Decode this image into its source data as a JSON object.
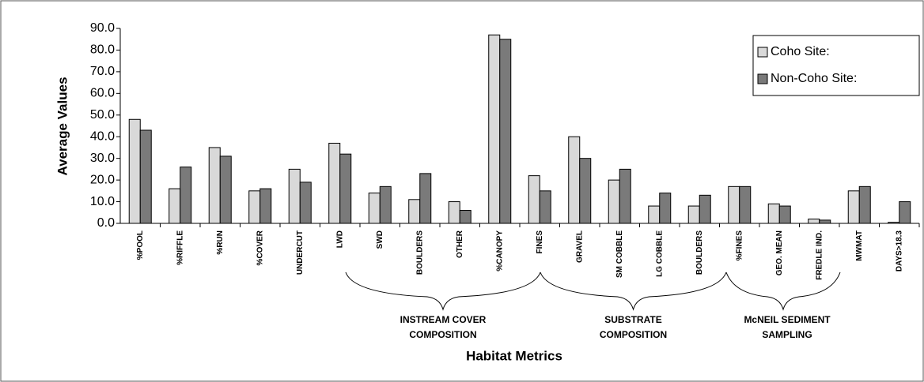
{
  "chart_data": {
    "type": "bar",
    "ylabel": "Average Values",
    "xlabel": "Habitat Metrics",
    "categories": [
      "%POOL",
      "%RIFFLE",
      "%RUN",
      "%COVER",
      "UNDERCUT",
      "LWD",
      "SWD",
      "BOULDERS",
      "OTHER",
      "%CANOPY",
      "FINES",
      "GRAVEL",
      "SM COBBLE",
      "LG COBBLE",
      "BOULDERS",
      "%FINES",
      "GEO. MEAN",
      "FREDLE IND.",
      "MWMAT",
      "DAYS>18.3"
    ],
    "series": [
      {
        "name": "Coho Site:",
        "color": "#d9d9d9",
        "values": [
          48,
          16,
          35,
          15,
          25,
          37,
          14,
          11,
          10,
          87,
          22,
          40,
          20,
          8,
          8,
          17,
          9,
          2,
          15,
          0.5
        ]
      },
      {
        "name": "Non-Coho Site:",
        "color": "#7a7a7a",
        "values": [
          43,
          26,
          31,
          16,
          19,
          32,
          17,
          23,
          6,
          85,
          15,
          30,
          25,
          14,
          13,
          17,
          8,
          1.5,
          17,
          10
        ]
      }
    ],
    "ylim": [
      0,
      90
    ],
    "yticks": [
      {
        "value": 0,
        "label": "0.0"
      },
      {
        "value": 10,
        "label": "10.0"
      },
      {
        "value": 20,
        "label": "20.0"
      },
      {
        "value": 30,
        "label": "30.0"
      },
      {
        "value": 40,
        "label": "40.0"
      },
      {
        "value": 50,
        "label": "50.0"
      },
      {
        "value": 60,
        "label": "60.0"
      },
      {
        "value": 70,
        "label": "70.0"
      },
      {
        "value": 80,
        "label": "80.0"
      },
      {
        "value": 90,
        "label": "90.0"
      }
    ],
    "legend": "upper right",
    "annotations": [
      [
        "INSTREAM COVER",
        "COMPOSITION"
      ],
      [
        "SUBSTRATE",
        "COMPOSITION"
      ],
      [
        "McNEIL SEDIMENT",
        "SAMPLING"
      ]
    ]
  }
}
